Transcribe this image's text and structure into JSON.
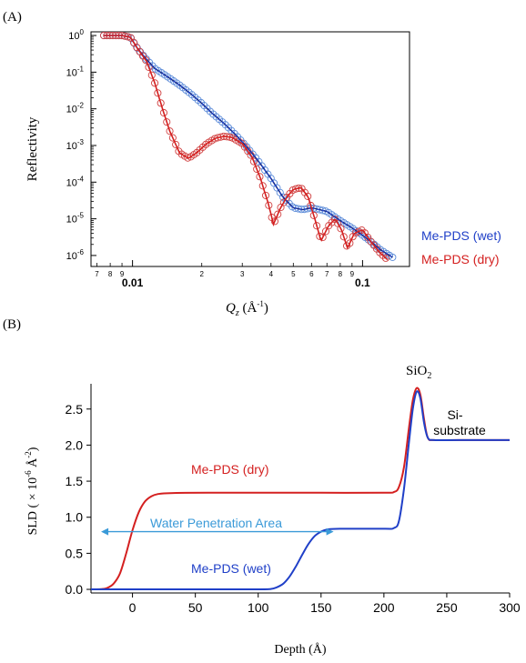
{
  "panels": {
    "a_label": "(A)",
    "b_label": "(B)"
  },
  "colors": {
    "wet": "#2040c8",
    "dry": "#d42020",
    "wet_markers": "#5a8ad8",
    "dry_markers": "#d04040",
    "water": "#3a9ad8",
    "fit_dark": "#1a1a1a"
  },
  "chart_data": [
    {
      "type": "scatter",
      "title": "",
      "xlabel": "Q_z (Å⁻¹)",
      "xlabel_var": "Q",
      "xlabel_sub": "z",
      "xlabel_unit": " (Å",
      "xlabel_exp": "-1",
      "xlabel_close": ")",
      "ylabel": "Reflectivity",
      "x_scale": "log",
      "y_scale": "log",
      "xlim": [
        0.0066,
        0.16
      ],
      "ylim_exp": [
        -6.3,
        0.1
      ],
      "x_ticks_major": [
        {
          "value": 0.01,
          "label": "0.01"
        },
        {
          "value": 0.1,
          "label": "0.1"
        }
      ],
      "x_ticks_minor": [
        {
          "value": 0.007,
          "label": "7"
        },
        {
          "value": 0.008,
          "label": "8"
        },
        {
          "value": 0.009,
          "label": "9"
        },
        {
          "value": 0.02,
          "label": "2"
        },
        {
          "value": 0.03,
          "label": "3"
        },
        {
          "value": 0.04,
          "label": "4"
        },
        {
          "value": 0.05,
          "label": "5"
        },
        {
          "value": 0.06,
          "label": "6"
        },
        {
          "value": 0.07,
          "label": "7"
        },
        {
          "value": 0.08,
          "label": "8"
        },
        {
          "value": 0.09,
          "label": "9"
        }
      ],
      "y_ticks": [
        {
          "exp": 0,
          "base": "10",
          "sup": "0"
        },
        {
          "exp": -1,
          "base": "10",
          "sup": "-1"
        },
        {
          "exp": -2,
          "base": "10",
          "sup": "-2"
        },
        {
          "exp": -3,
          "base": "10",
          "sup": "-3"
        },
        {
          "exp": -4,
          "base": "10",
          "sup": "-4"
        },
        {
          "exp": -5,
          "base": "10",
          "sup": "-5"
        },
        {
          "exp": -6,
          "base": "10",
          "sup": "-6"
        }
      ],
      "series": [
        {
          "name": "Me-PDS (wet)",
          "color": "#2040c8",
          "marker": "open-circle",
          "log10_points": [
            [
              0.0075,
              0
            ],
            [
              0.0082,
              0
            ],
            [
              0.009,
              0
            ],
            [
              0.0098,
              -0.05
            ],
            [
              0.0105,
              -0.35
            ],
            [
              0.0115,
              -0.65
            ],
            [
              0.0125,
              -0.9
            ],
            [
              0.014,
              -1.1
            ],
            [
              0.016,
              -1.35
            ],
            [
              0.018,
              -1.6
            ],
            [
              0.02,
              -1.85
            ],
            [
              0.022,
              -2.1
            ],
            [
              0.025,
              -2.4
            ],
            [
              0.028,
              -2.7
            ],
            [
              0.031,
              -3.0
            ],
            [
              0.035,
              -3.4
            ],
            [
              0.04,
              -3.9
            ],
            [
              0.045,
              -4.4
            ],
            [
              0.05,
              -4.7
            ],
            [
              0.055,
              -4.75
            ],
            [
              0.06,
              -4.7
            ],
            [
              0.065,
              -4.75
            ],
            [
              0.07,
              -4.8
            ],
            [
              0.08,
              -5.05
            ],
            [
              0.09,
              -5.25
            ],
            [
              0.1,
              -5.45
            ],
            [
              0.11,
              -5.65
            ],
            [
              0.12,
              -5.85
            ],
            [
              0.135,
              -6.05
            ]
          ]
        },
        {
          "name": "Me-PDS (dry)",
          "color": "#d42020",
          "marker": "open-circle",
          "log10_points": [
            [
              0.0075,
              0
            ],
            [
              0.0082,
              0
            ],
            [
              0.009,
              0
            ],
            [
              0.0098,
              -0.05
            ],
            [
              0.0105,
              -0.35
            ],
            [
              0.0115,
              -0.7
            ],
            [
              0.0125,
              -1.3
            ],
            [
              0.0135,
              -2.0
            ],
            [
              0.0145,
              -2.6
            ],
            [
              0.016,
              -3.2
            ],
            [
              0.0175,
              -3.35
            ],
            [
              0.019,
              -3.2
            ],
            [
              0.021,
              -2.95
            ],
            [
              0.023,
              -2.8
            ],
            [
              0.025,
              -2.75
            ],
            [
              0.027,
              -2.78
            ],
            [
              0.03,
              -2.95
            ],
            [
              0.033,
              -3.3
            ],
            [
              0.036,
              -3.9
            ],
            [
              0.039,
              -4.6
            ],
            [
              0.041,
              -5.15
            ],
            [
              0.044,
              -4.7
            ],
            [
              0.047,
              -4.4
            ],
            [
              0.05,
              -4.2
            ],
            [
              0.054,
              -4.15
            ],
            [
              0.058,
              -4.4
            ],
            [
              0.062,
              -5.0
            ],
            [
              0.066,
              -5.6
            ],
            [
              0.071,
              -5.2
            ],
            [
              0.076,
              -5.0
            ],
            [
              0.081,
              -5.3
            ],
            [
              0.086,
              -5.8
            ],
            [
              0.092,
              -5.4
            ],
            [
              0.1,
              -5.3
            ],
            [
              0.108,
              -5.6
            ],
            [
              0.118,
              -5.9
            ],
            [
              0.13,
              -6.15
            ]
          ]
        }
      ]
    },
    {
      "type": "line",
      "title": "",
      "xlabel": "Depth (Å)",
      "ylabel_prefix": "SLD ( × 10",
      "ylabel_exp1": "-6",
      "ylabel_mid": " Å",
      "ylabel_exp2": "-2",
      "ylabel_suffix": ")",
      "xlim": [
        -33,
        300
      ],
      "ylim": [
        -0.05,
        2.85
      ],
      "x_ticks": [
        0,
        50,
        100,
        150,
        200,
        250,
        300
      ],
      "y_ticks": [
        "0.0",
        "0.5",
        "1.0",
        "1.5",
        "2.0",
        "2.5"
      ],
      "y_tick_values": [
        0,
        0.5,
        1.0,
        1.5,
        2.0,
        2.5
      ],
      "series": [
        {
          "name": "Me-PDS (dry)",
          "color": "#d42020",
          "points": [
            [
              -33,
              0
            ],
            [
              -25,
              0.003
            ],
            [
              -20,
              0.02
            ],
            [
              -15,
              0.08
            ],
            [
              -10,
              0.22
            ],
            [
              -5,
              0.5
            ],
            [
              0,
              0.82
            ],
            [
              5,
              1.07
            ],
            [
              10,
              1.22
            ],
            [
              15,
              1.29
            ],
            [
              20,
              1.32
            ],
            [
              30,
              1.335
            ],
            [
              60,
              1.34
            ],
            [
              100,
              1.34
            ],
            [
              150,
              1.34
            ],
            [
              200,
              1.34
            ],
            [
              208,
              1.35
            ],
            [
              212,
              1.42
            ],
            [
              216,
              1.7
            ],
            [
              220,
              2.25
            ],
            [
              223,
              2.62
            ],
            [
              226,
              2.79
            ],
            [
              229,
              2.7
            ],
            [
              232,
              2.35
            ],
            [
              235,
              2.1
            ],
            [
              240,
              2.07
            ],
            [
              260,
              2.07
            ],
            [
              300,
              2.07
            ]
          ]
        },
        {
          "name": "Me-PDS (wet)",
          "color": "#2040c8",
          "points": [
            [
              -33,
              0
            ],
            [
              0,
              0
            ],
            [
              50,
              0
            ],
            [
              100,
              0
            ],
            [
              110,
              0.005
            ],
            [
              115,
              0.03
            ],
            [
              120,
              0.08
            ],
            [
              125,
              0.18
            ],
            [
              130,
              0.32
            ],
            [
              135,
              0.48
            ],
            [
              140,
              0.63
            ],
            [
              145,
              0.74
            ],
            [
              150,
              0.8
            ],
            [
              155,
              0.83
            ],
            [
              165,
              0.84
            ],
            [
              200,
              0.84
            ],
            [
              208,
              0.85
            ],
            [
              212,
              0.95
            ],
            [
              216,
              1.4
            ],
            [
              220,
              2.05
            ],
            [
              223,
              2.5
            ],
            [
              226,
              2.74
            ],
            [
              229,
              2.65
            ],
            [
              232,
              2.3
            ],
            [
              235,
              2.1
            ],
            [
              240,
              2.07
            ],
            [
              260,
              2.07
            ],
            [
              300,
              2.07
            ]
          ]
        }
      ],
      "annotations": {
        "sio2_base": "SiO",
        "sio2_sub": "2",
        "si_line1": "Si-",
        "si_line2": "substrate",
        "water_label": "Water Penetration Area",
        "water_arrow_range": [
          -25,
          160
        ],
        "water_arrow_level": 0.8,
        "dry_label": "Me-PDS (dry)",
        "wet_label": "Me-PDS (wet)"
      }
    }
  ]
}
